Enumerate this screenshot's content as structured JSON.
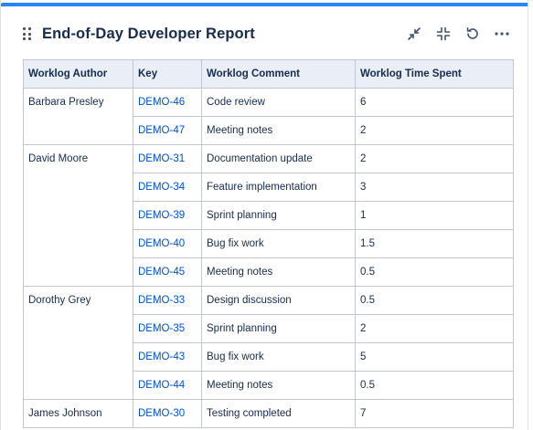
{
  "gadget": {
    "title": "End-of-Day Developer Report",
    "actions": [
      {
        "name": "minimize-icon"
      },
      {
        "name": "collapse-icon"
      },
      {
        "name": "refresh-icon"
      },
      {
        "name": "more-options-icon"
      }
    ]
  },
  "table": {
    "headers": [
      "Worklog Author",
      "Key",
      "Worklog Comment",
      "Worklog Time Spent"
    ],
    "groups": [
      {
        "author": "Barbara Presley",
        "rows": [
          {
            "key": "DEMO-46",
            "comment": "Code review",
            "time": "6"
          },
          {
            "key": "DEMO-47",
            "comment": "Meeting notes",
            "time": "2"
          }
        ]
      },
      {
        "author": "David Moore",
        "rows": [
          {
            "key": "DEMO-31",
            "comment": "Documentation update",
            "time": "2"
          },
          {
            "key": "DEMO-34",
            "comment": "Feature implementation",
            "time": "3"
          },
          {
            "key": "DEMO-39",
            "comment": "Sprint planning",
            "time": "1"
          },
          {
            "key": "DEMO-40",
            "comment": "Bug fix work",
            "time": "1.5"
          },
          {
            "key": "DEMO-45",
            "comment": "Meeting notes",
            "time": "0.5"
          }
        ]
      },
      {
        "author": "Dorothy Grey",
        "rows": [
          {
            "key": "DEMO-33",
            "comment": "Design discussion",
            "time": "0.5"
          },
          {
            "key": "DEMO-35",
            "comment": "Sprint planning",
            "time": "2"
          },
          {
            "key": "DEMO-43",
            "comment": "Bug fix work",
            "time": "5"
          },
          {
            "key": "DEMO-44",
            "comment": "Meeting notes",
            "time": "0.5"
          }
        ]
      },
      {
        "author": "James Johnson",
        "rows": [
          {
            "key": "DEMO-30",
            "comment": "Testing completed",
            "time": "7"
          }
        ]
      }
    ]
  }
}
